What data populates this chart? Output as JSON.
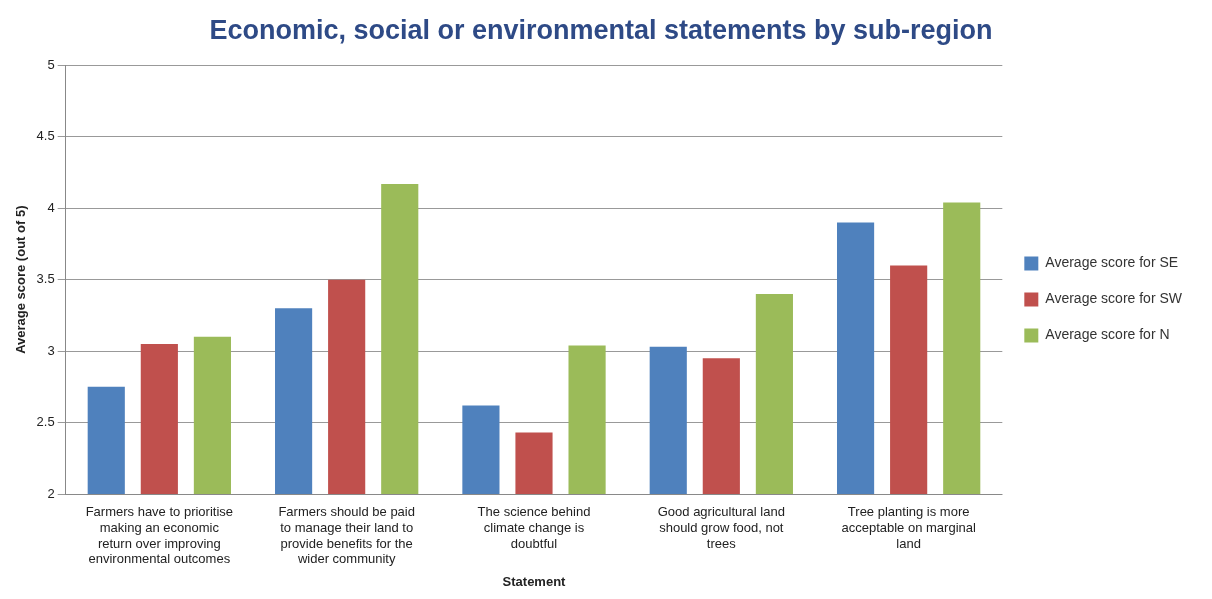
{
  "chart_data": {
    "type": "bar",
    "title": "Economic, social or environmental statements by sub-region",
    "xlabel": "Statement",
    "ylabel": "Average score (out of 5)",
    "categories": [
      "Farmers have to prioritise making an economic return over improving environmental outcomes",
      "Farmers should be paid to manage their land to provide benefits for the wider community",
      "The science behind climate change is doubtful",
      "Good agricultural land should grow food, not trees",
      "Tree planting is more acceptable on marginal land"
    ],
    "series": [
      {
        "name": "Average score for SE",
        "color": "#4f81bd",
        "values": [
          2.75,
          3.3,
          2.62,
          3.03,
          3.9
        ]
      },
      {
        "name": "Average score for SW",
        "color": "#c0504d",
        "values": [
          3.05,
          3.5,
          2.43,
          2.95,
          3.6
        ]
      },
      {
        "name": "Average score for N",
        "color": "#9bbb59",
        "values": [
          3.1,
          4.17,
          3.04,
          3.4,
          4.04
        ]
      }
    ],
    "ylim": [
      2,
      5
    ],
    "yticks": [
      2,
      2.5,
      3,
      3.5,
      4,
      4.5,
      5
    ],
    "grid": "y",
    "legend": "right"
  }
}
